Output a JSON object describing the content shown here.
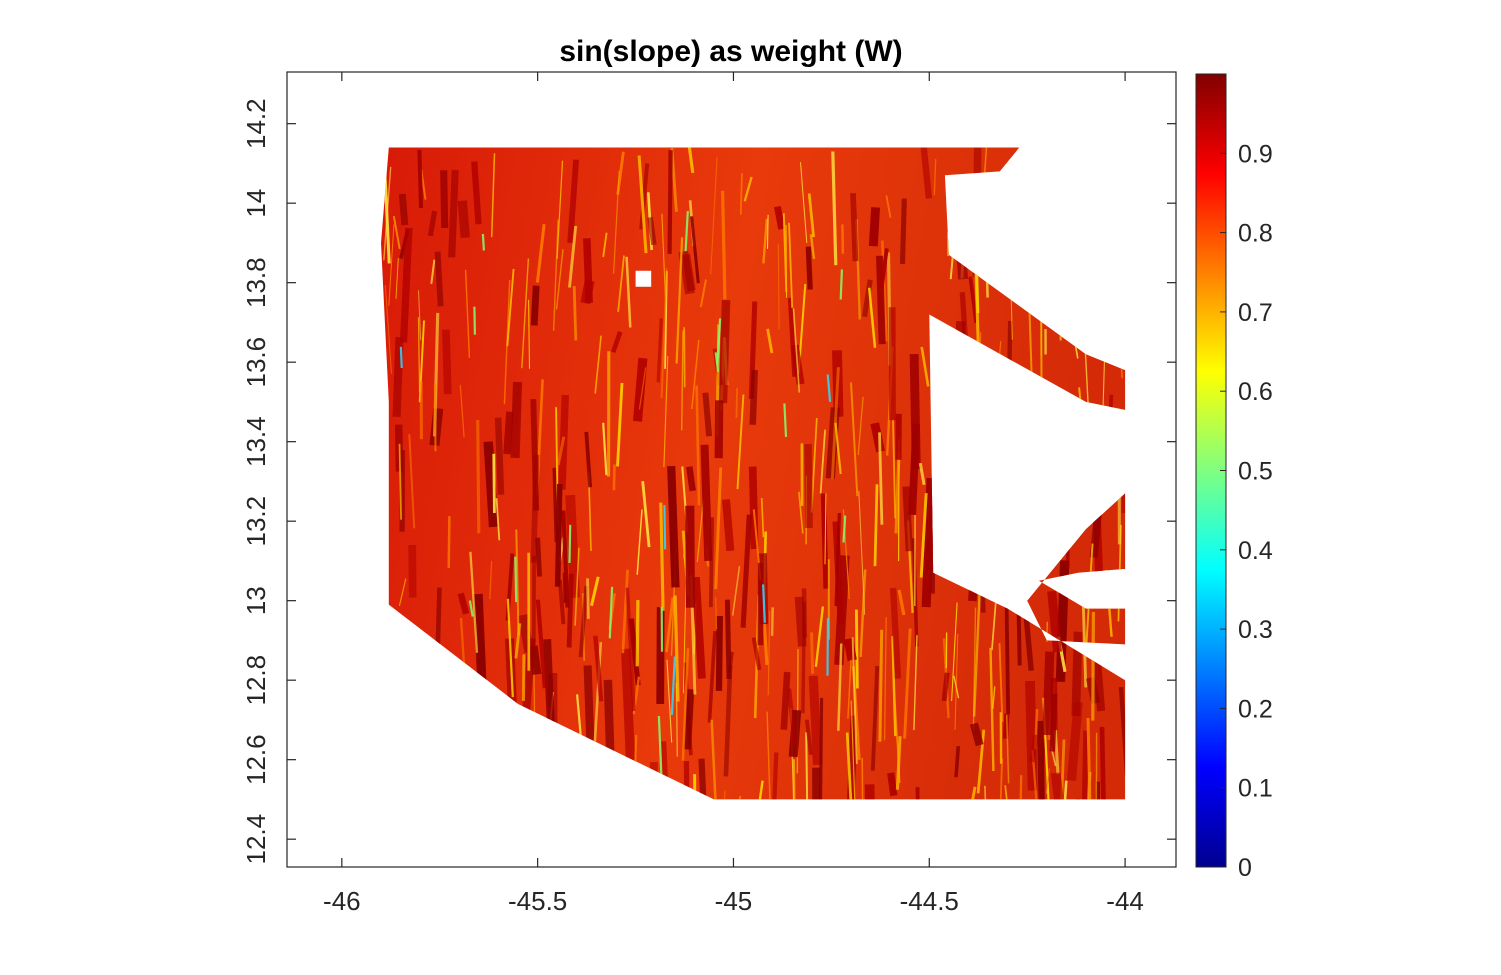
{
  "chart_data": {
    "type": "heatmap",
    "title": "sin(slope) as weight (W)",
    "xlabel": "",
    "ylabel": "",
    "xlim": [
      -46.14,
      -43.87
    ],
    "ylim": [
      12.33,
      14.33
    ],
    "x_ticks": [
      -46,
      -45.5,
      -45,
      -44.5,
      -44
    ],
    "x_tick_labels": [
      "-46",
      "-45.5",
      "-45",
      "-44.5",
      "-44"
    ],
    "y_ticks": [
      12.4,
      12.6,
      12.8,
      13.0,
      13.2,
      13.4,
      13.6,
      13.8,
      14.0,
      14.2
    ],
    "y_tick_labels": [
      "12.4",
      "12.6",
      "12.8",
      "13",
      "13.2",
      "13.4",
      "13.6",
      "13.8",
      "14",
      "14.2"
    ],
    "grid": false,
    "colormap": "jet",
    "colorbar": {
      "range": [
        0,
        1
      ],
      "ticks": [
        0,
        0.1,
        0.2,
        0.3,
        0.4,
        0.5,
        0.6,
        0.7,
        0.8,
        0.9
      ],
      "tick_labels": [
        "0",
        "0.1",
        "0.2",
        "0.3",
        "0.4",
        "0.5",
        "0.6",
        "0.7",
        "0.8",
        "0.9"
      ]
    },
    "dominant_value_range": [
      0.75,
      1.0
    ],
    "data_region_outline": [
      [
        -45.88,
        14.14
      ],
      [
        -44.27,
        14.14
      ],
      [
        -44.32,
        14.08
      ],
      [
        -44.46,
        14.07
      ],
      [
        -44.45,
        13.87
      ],
      [
        -44.1,
        13.62
      ],
      [
        -44.0,
        13.58
      ],
      [
        -44.0,
        13.48
      ],
      [
        -44.1,
        13.5
      ],
      [
        -44.5,
        13.72
      ],
      [
        -44.49,
        13.07
      ],
      [
        -44.3,
        12.98
      ],
      [
        -44.0,
        12.8
      ],
      [
        -44.0,
        12.89
      ],
      [
        -44.2,
        12.9
      ],
      [
        -44.25,
        13.0
      ],
      [
        -44.1,
        13.18
      ],
      [
        -44.0,
        13.27
      ],
      [
        -44.0,
        12.5
      ],
      [
        -45.05,
        12.5
      ],
      [
        -45.55,
        12.74
      ],
      [
        -45.88,
        12.99
      ],
      [
        -45.88,
        13.5
      ],
      [
        -45.9,
        13.9
      ]
    ],
    "holes": [
      {
        "outline": [
          [
            -44.0,
            13.08
          ],
          [
            -44.12,
            13.07
          ],
          [
            -44.22,
            13.05
          ],
          [
            -44.1,
            12.98
          ],
          [
            -44.0,
            12.98
          ]
        ]
      },
      {
        "outline": [
          [
            -45.25,
            13.83
          ],
          [
            -45.21,
            13.83
          ],
          [
            -45.21,
            13.79
          ],
          [
            -45.25,
            13.79
          ]
        ]
      }
    ]
  }
}
